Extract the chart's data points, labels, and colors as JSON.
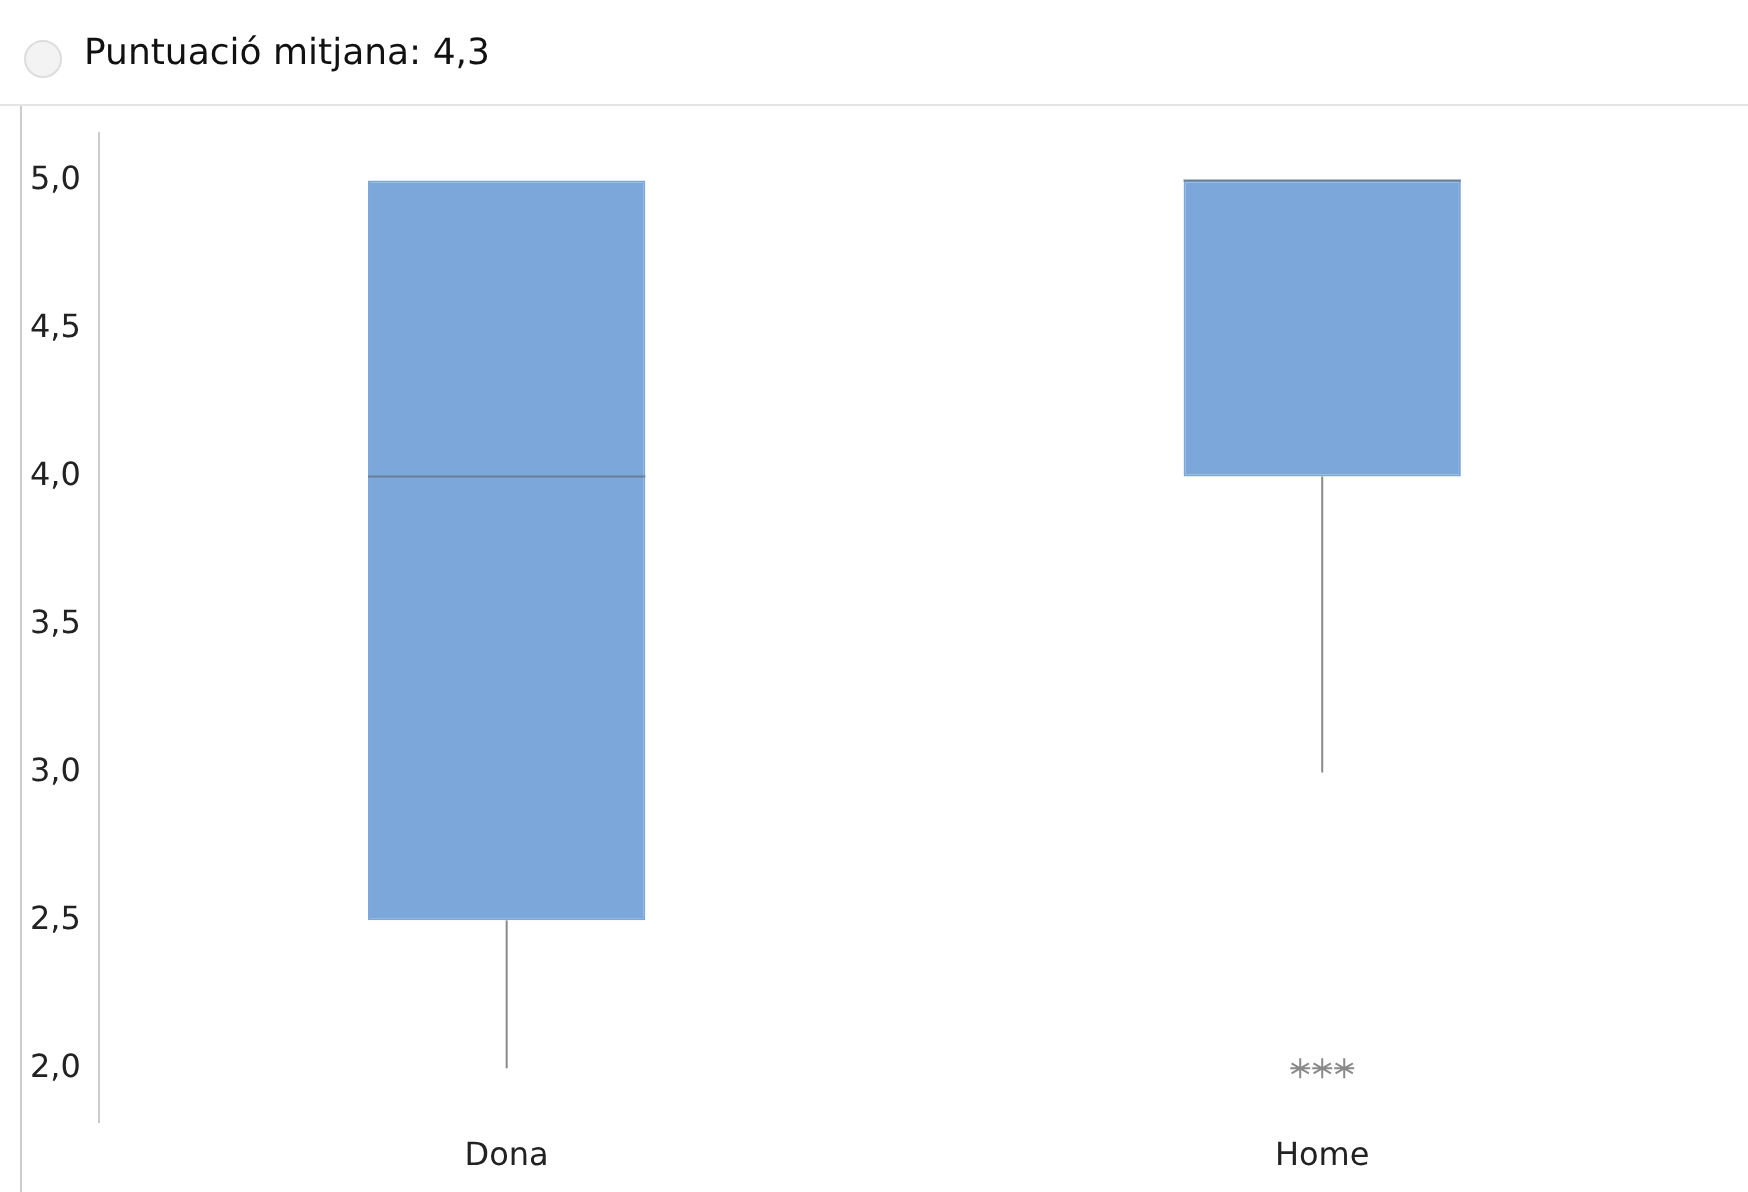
{
  "chart_data": {
    "type": "box",
    "title": "Puntuació mitjana: 4,3",
    "categories": [
      "Dona",
      "Home"
    ],
    "color": "#7ba7da",
    "marker": "star",
    "boxes": [
      {
        "low": 2,
        "q1": 2.5,
        "median": 4,
        "q3": 5,
        "high": 5
      },
      {
        "low": 3,
        "q1": 4,
        "median": 5,
        "q3": 5,
        "high": 5,
        "outliers": [
          2,
          2,
          2
        ]
      }
    ],
    "ylim": [
      1.82,
      5.16
    ],
    "yticks": [
      {
        "value": 2,
        "label": "2,0"
      },
      {
        "value": 2.5,
        "label": "2,5"
      },
      {
        "value": 3,
        "label": "3,0"
      },
      {
        "value": 3.5,
        "label": "3,5"
      },
      {
        "value": 4,
        "label": "4,0"
      },
      {
        "value": 4.5,
        "label": "4,5"
      },
      {
        "value": 5,
        "label": "5,0"
      }
    ],
    "grid": false
  }
}
